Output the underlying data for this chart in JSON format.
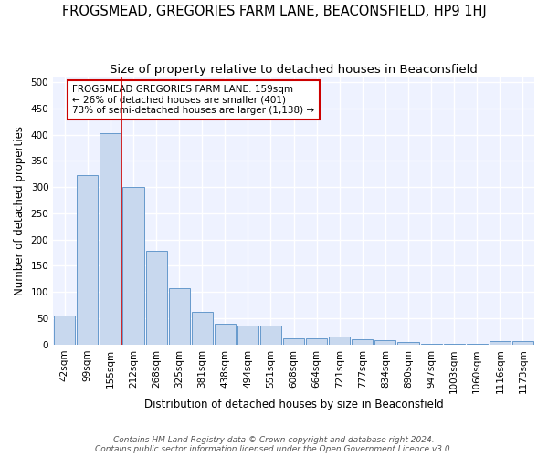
{
  "title": "FROGSMEAD, GREGORIES FARM LANE, BEACONSFIELD, HP9 1HJ",
  "subtitle": "Size of property relative to detached houses in Beaconsfield",
  "xlabel": "Distribution of detached houses by size in Beaconsfield",
  "ylabel": "Number of detached properties",
  "footer1": "Contains HM Land Registry data © Crown copyright and database right 2024.",
  "footer2": "Contains public sector information licensed under the Open Government Licence v3.0.",
  "categories": [
    "42sqm",
    "99sqm",
    "155sqm",
    "212sqm",
    "268sqm",
    "325sqm",
    "381sqm",
    "438sqm",
    "494sqm",
    "551sqm",
    "608sqm",
    "664sqm",
    "721sqm",
    "777sqm",
    "834sqm",
    "890sqm",
    "947sqm",
    "1003sqm",
    "1060sqm",
    "1116sqm",
    "1173sqm"
  ],
  "values": [
    55,
    322,
    403,
    300,
    178,
    108,
    63,
    40,
    37,
    36,
    12,
    11,
    15,
    10,
    8,
    5,
    2,
    1,
    1,
    6,
    6
  ],
  "bar_color": "#c8d8ee",
  "bar_edge_color": "#6699cc",
  "vline_x": 2.5,
  "vline_color": "#cc0000",
  "annotation_line1": "FROGSMEAD GREGORIES FARM LANE: 159sqm",
  "annotation_line2": "← 26% of detached houses are smaller (401)",
  "annotation_line3": "73% of semi-detached houses are larger (1,138) →",
  "annotation_box_color": "#cc0000",
  "ylim": [
    0,
    510
  ],
  "yticks": [
    0,
    50,
    100,
    150,
    200,
    250,
    300,
    350,
    400,
    450,
    500
  ],
  "fig_bg_color": "#ffffff",
  "plot_bg_color": "#eef2ff",
  "grid_color": "#ffffff",
  "title_fontsize": 10.5,
  "subtitle_fontsize": 9.5,
  "axis_label_fontsize": 8.5,
  "tick_fontsize": 7.5,
  "footer_fontsize": 6.5
}
